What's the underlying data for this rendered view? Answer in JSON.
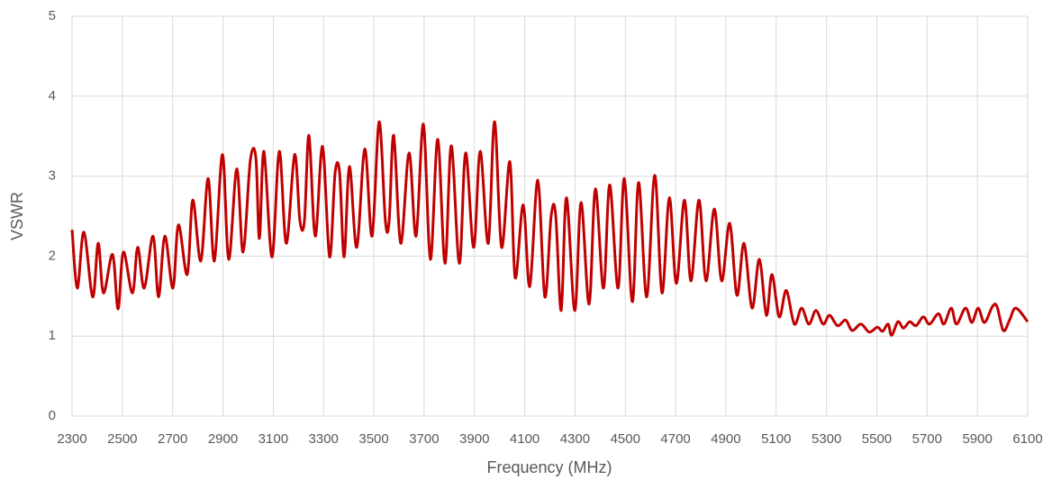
{
  "chart_data": {
    "type": "line",
    "x_label": "Frequency (MHz)",
    "y_label": "VSWR",
    "xlim": [
      2300,
      6100
    ],
    "xticks": [
      2300,
      2500,
      2700,
      2900,
      3100,
      3300,
      3500,
      3700,
      3900,
      4100,
      4300,
      4500,
      4700,
      4900,
      5100,
      5300,
      5500,
      5700,
      5900,
      6100
    ],
    "ylim": [
      0,
      5
    ],
    "yticks": [
      0,
      1,
      2,
      3,
      4,
      5
    ],
    "grid": true,
    "x": [
      2300,
      2321,
      2347,
      2382,
      2404,
      2425,
      2461,
      2483,
      2504,
      2540,
      2561,
      2587,
      2622,
      2644,
      2669,
      2701,
      2723,
      2758,
      2780,
      2812,
      2841,
      2866,
      2898,
      2923,
      2955,
      2980,
      3009,
      3031,
      3045,
      3063,
      3095,
      3124,
      3152,
      3185,
      3206,
      3224,
      3242,
      3267,
      3296,
      3324,
      3346,
      3364,
      3382,
      3403,
      3432,
      3464,
      3493,
      3521,
      3546,
      3561,
      3579,
      3607,
      3640,
      3668,
      3697,
      3725,
      3754,
      3783,
      3808,
      3840,
      3865,
      3897,
      3923,
      3955,
      3980,
      4008,
      4041,
      4062,
      4094,
      4120,
      4152,
      4180,
      4205,
      4223,
      4245,
      4266,
      4299,
      4324,
      4356,
      4381,
      4413,
      4438,
      4471,
      4496,
      4528,
      4553,
      4585,
      4617,
      4646,
      4675,
      4703,
      4735,
      4761,
      4793,
      4821,
      4854,
      4883,
      4915,
      4944,
      4972,
      5004,
      5033,
      5061,
      5083,
      5112,
      5140,
      5172,
      5201,
      5230,
      5258,
      5287,
      5312,
      5344,
      5376,
      5402,
      5437,
      5470,
      5502,
      5523,
      5545,
      5559,
      5584,
      5606,
      5631,
      5656,
      5685,
      5710,
      5745,
      5767,
      5796,
      5817,
      5853,
      5878,
      5903,
      5928,
      5960,
      5978,
      6003,
      6028,
      6053,
      6100
    ],
    "series": [
      {
        "name": "VSWR",
        "color": "#c00000",
        "values": [
          2.33,
          1.6,
          2.3,
          1.49,
          2.16,
          1.54,
          2.02,
          1.34,
          2.05,
          1.54,
          2.11,
          1.6,
          2.25,
          1.49,
          2.25,
          1.6,
          2.39,
          1.77,
          2.7,
          1.94,
          2.97,
          1.94,
          3.27,
          1.96,
          3.09,
          2.05,
          3.2,
          3.23,
          2.22,
          3.31,
          1.99,
          3.31,
          2.16,
          3.27,
          2.44,
          2.44,
          3.51,
          2.25,
          3.37,
          1.99,
          3.04,
          3.04,
          1.99,
          3.12,
          2.11,
          3.34,
          2.25,
          3.68,
          2.44,
          2.44,
          3.51,
          2.16,
          3.29,
          2.25,
          3.65,
          1.96,
          3.46,
          1.91,
          3.38,
          1.91,
          3.29,
          2.11,
          3.31,
          2.16,
          3.68,
          2.11,
          3.18,
          1.73,
          2.64,
          1.62,
          2.95,
          1.49,
          2.5,
          2.52,
          1.32,
          2.73,
          1.32,
          2.67,
          1.4,
          2.84,
          1.6,
          2.89,
          1.6,
          2.97,
          1.43,
          2.92,
          1.49,
          3.01,
          1.54,
          2.73,
          1.66,
          2.7,
          1.69,
          2.7,
          1.69,
          2.59,
          1.69,
          2.41,
          1.51,
          2.16,
          1.35,
          1.96,
          1.26,
          1.77,
          1.24,
          1.57,
          1.15,
          1.35,
          1.15,
          1.32,
          1.15,
          1.26,
          1.13,
          1.2,
          1.07,
          1.15,
          1.05,
          1.11,
          1.06,
          1.15,
          1.01,
          1.18,
          1.1,
          1.18,
          1.13,
          1.24,
          1.15,
          1.28,
          1.15,
          1.35,
          1.15,
          1.35,
          1.17,
          1.35,
          1.17,
          1.37,
          1.37,
          1.07,
          1.2,
          1.35,
          1.18
        ]
      }
    ]
  }
}
